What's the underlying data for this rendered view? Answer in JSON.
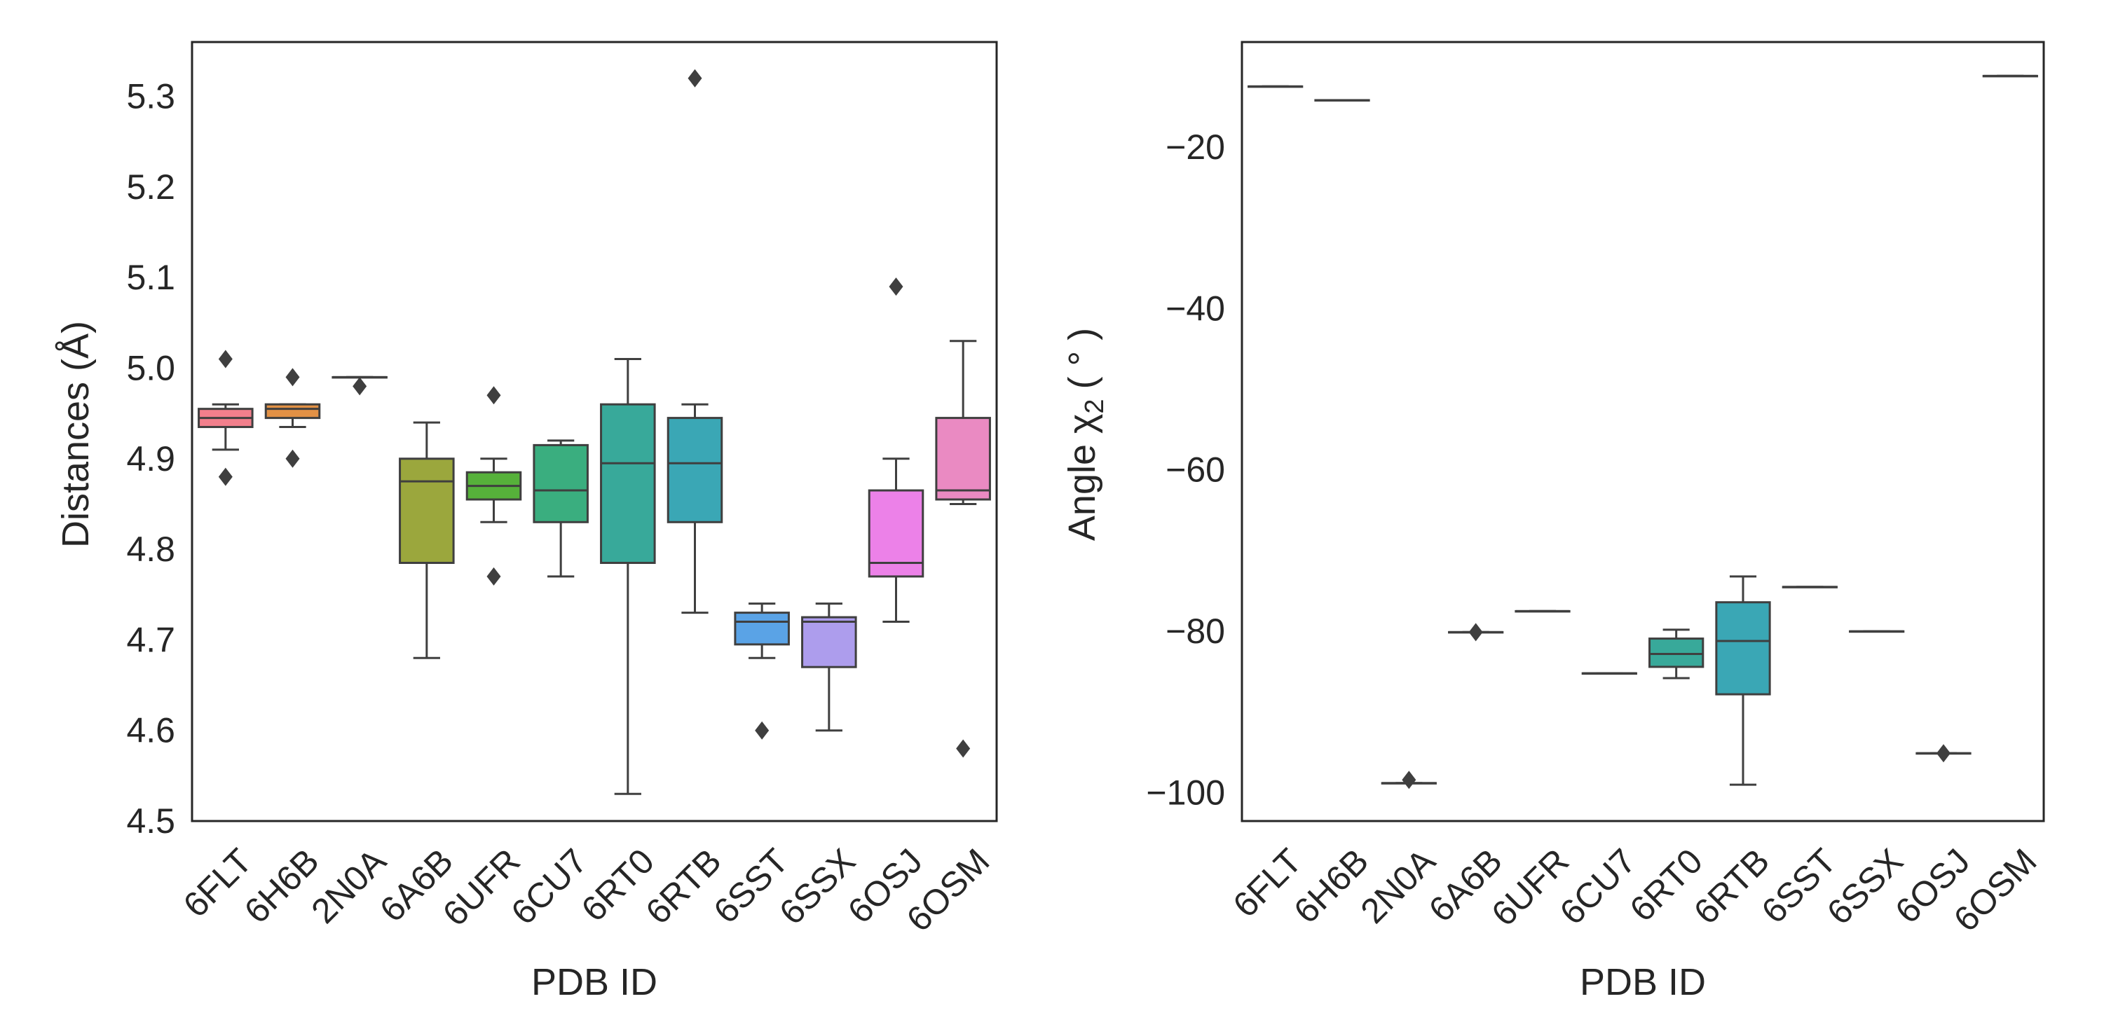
{
  "chart_data": [
    {
      "type": "box",
      "xlabel": "PDB ID",
      "ylabel": "Distances (Å)",
      "ylim": [
        4.5,
        5.36
      ],
      "yticks": [
        4.5,
        4.6,
        4.7,
        4.8,
        4.9,
        5.0,
        5.1,
        5.2,
        5.3
      ],
      "ytick_labels": [
        "4.5",
        "4.6",
        "4.7",
        "4.8",
        "4.9",
        "5.0",
        "5.1",
        "5.2",
        "5.3"
      ],
      "categories": [
        "6FLT",
        "6H6B",
        "2N0A",
        "6A6B",
        "6UFR",
        "6CU7",
        "6RT0",
        "6RTB",
        "6SST",
        "6SSX",
        "6OSJ",
        "6OSM"
      ],
      "boxes": [
        {
          "label": "6FLT",
          "color": "#f27f8c",
          "whislo": 4.91,
          "q1": 4.935,
          "med": 4.945,
          "q3": 4.955,
          "whishi": 4.96,
          "fliers": [
            5.01,
            4.88
          ]
        },
        {
          "label": "6H6B",
          "color": "#e29145",
          "whislo": 4.935,
          "q1": 4.945,
          "med": 4.955,
          "q3": 4.96,
          "whishi": 4.96,
          "fliers": [
            4.99,
            4.9
          ]
        },
        {
          "label": "2N0A",
          "color": "#c6a035",
          "whislo": 4.99,
          "q1": 4.99,
          "med": 4.99,
          "q3": 4.99,
          "whishi": 4.99,
          "fliers": [
            4.98
          ]
        },
        {
          "label": "6A6B",
          "color": "#9ba73d",
          "whislo": 4.68,
          "q1": 4.785,
          "med": 4.875,
          "q3": 4.9,
          "whishi": 4.94,
          "fliers": []
        },
        {
          "label": "6UFR",
          "color": "#56b13a",
          "whislo": 4.83,
          "q1": 4.855,
          "med": 4.87,
          "q3": 4.885,
          "whishi": 4.9,
          "fliers": [
            4.97,
            4.77
          ]
        },
        {
          "label": "6CU7",
          "color": "#3aae7f",
          "whislo": 4.77,
          "q1": 4.83,
          "med": 4.865,
          "q3": 4.915,
          "whishi": 4.92,
          "fliers": []
        },
        {
          "label": "6RT0",
          "color": "#38a99a",
          "whislo": 4.53,
          "q1": 4.785,
          "med": 4.895,
          "q3": 4.96,
          "whishi": 5.01,
          "fliers": []
        },
        {
          "label": "6RTB",
          "color": "#3aa7b5",
          "whislo": 4.73,
          "q1": 4.83,
          "med": 4.895,
          "q3": 4.945,
          "whishi": 4.96,
          "fliers": [
            5.32
          ]
        },
        {
          "label": "6SST",
          "color": "#5aa3e6",
          "whislo": 4.68,
          "q1": 4.695,
          "med": 4.72,
          "q3": 4.73,
          "whishi": 4.74,
          "fliers": [
            4.6
          ]
        },
        {
          "label": "6SSX",
          "color": "#ad9ded",
          "whislo": 4.6,
          "q1": 4.67,
          "med": 4.72,
          "q3": 4.725,
          "whishi": 4.74,
          "fliers": []
        },
        {
          "label": "6OSJ",
          "color": "#ec81e8",
          "whislo": 4.72,
          "q1": 4.77,
          "med": 4.785,
          "q3": 4.865,
          "whishi": 4.9,
          "fliers": [
            5.09
          ]
        },
        {
          "label": "6OSM",
          "color": "#ea8ac2",
          "whislo": 4.85,
          "q1": 4.855,
          "med": 4.865,
          "q3": 4.945,
          "whishi": 5.03,
          "fliers": [
            4.58
          ]
        }
      ]
    },
    {
      "type": "box",
      "xlabel": "PDB ID",
      "ylabel": "Angle χ",
      "ylabel_subscript": "2",
      "ylabel_unit": "( ° )",
      "ylim": [
        -103.5,
        -7
      ],
      "yticks": [
        -100,
        -80,
        -60,
        -40,
        -20
      ],
      "ytick_labels": [
        "−100",
        "−80",
        "−60",
        "−40",
        "−20"
      ],
      "categories": [
        "6FLT",
        "6H6B",
        "2N0A",
        "6A6B",
        "6UFR",
        "6CU7",
        "6RT0",
        "6RTB",
        "6SST",
        "6SSX",
        "6OSJ",
        "6OSM"
      ],
      "boxes": [
        {
          "label": "6FLT",
          "color": "#f27f8c",
          "whislo": -12.5,
          "q1": -12.5,
          "med": -12.5,
          "q3": -12.5,
          "whishi": -12.5,
          "fliers": []
        },
        {
          "label": "6H6B",
          "color": "#e29145",
          "whislo": -14.2,
          "q1": -14.2,
          "med": -14.2,
          "q3": -14.2,
          "whishi": -14.2,
          "fliers": []
        },
        {
          "label": "2N0A",
          "color": "#c6a035",
          "whislo": -98.8,
          "q1": -98.8,
          "med": -98.8,
          "q3": -98.8,
          "whishi": -98.8,
          "fliers": [
            -98.4
          ]
        },
        {
          "label": "6A6B",
          "color": "#9ba73d",
          "whislo": -80.1,
          "q1": -80.1,
          "med": -80.1,
          "q3": -80.1,
          "whishi": -80.1,
          "fliers": [
            -80.1
          ]
        },
        {
          "label": "6UFR",
          "color": "#56b13a",
          "whislo": -77.5,
          "q1": -77.5,
          "med": -77.5,
          "q3": -77.5,
          "whishi": -77.5,
          "fliers": []
        },
        {
          "label": "6CU7",
          "color": "#3aae7f",
          "whislo": -85.2,
          "q1": -85.2,
          "med": -85.2,
          "q3": -85.2,
          "whishi": -85.2,
          "fliers": []
        },
        {
          "label": "6RT0",
          "color": "#38a99a",
          "whislo": -85.8,
          "q1": -84.4,
          "med": -82.8,
          "q3": -80.9,
          "whishi": -79.8,
          "fliers": []
        },
        {
          "label": "6RTB",
          "color": "#3aa7b5",
          "whislo": -99.0,
          "q1": -87.8,
          "med": -81.2,
          "q3": -76.4,
          "whishi": -73.2,
          "fliers": []
        },
        {
          "label": "6SST",
          "color": "#5aa3e6",
          "whislo": -74.5,
          "q1": -74.5,
          "med": -74.5,
          "q3": -74.5,
          "whishi": -74.5,
          "fliers": []
        },
        {
          "label": "6SSX",
          "color": "#ad9ded",
          "whislo": -80.0,
          "q1": -80.0,
          "med": -80.0,
          "q3": -80.0,
          "whishi": -80.0,
          "fliers": []
        },
        {
          "label": "6OSJ",
          "color": "#ec81e8",
          "whislo": -95.1,
          "q1": -95.1,
          "med": -95.1,
          "q3": -95.1,
          "whishi": -95.1,
          "fliers": [
            -95.1
          ]
        },
        {
          "label": "6OSM",
          "color": "#ea8ac2",
          "whislo": -11.2,
          "q1": -11.2,
          "med": -11.2,
          "q3": -11.2,
          "whishi": -11.2,
          "fliers": []
        }
      ]
    }
  ]
}
